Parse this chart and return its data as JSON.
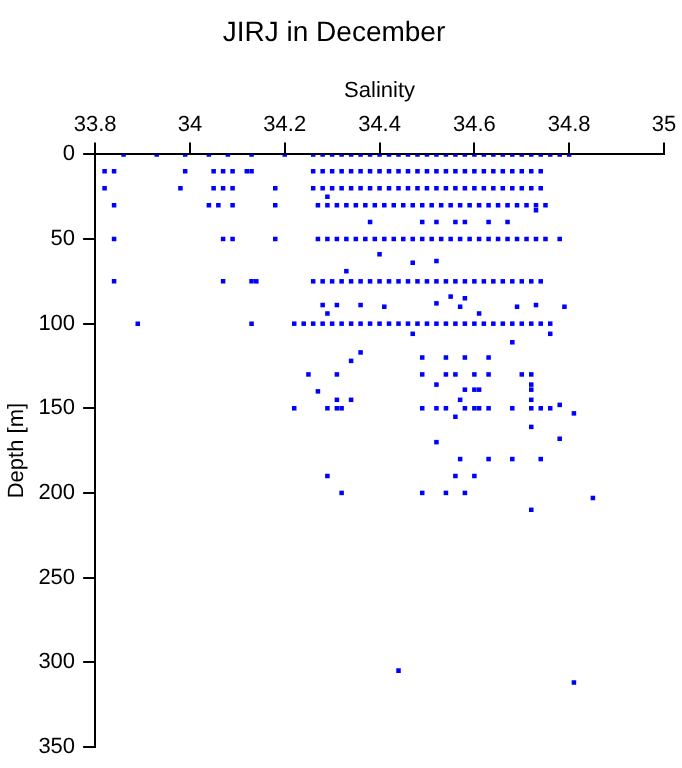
{
  "chart_data": {
    "type": "scatter",
    "title": "JIRJ in December",
    "xlabel": "Salinity",
    "ylabel": "Depth [m]",
    "xlim": [
      33.8,
      35
    ],
    "xticks": [
      33.8,
      34,
      34.2,
      34.4,
      34.6,
      34.8,
      35
    ],
    "ylim": [
      350,
      0
    ],
    "yticks": [
      0,
      50,
      100,
      150,
      200,
      250,
      300,
      350
    ],
    "grid": false,
    "marker": "square",
    "color": "#0000ff",
    "x": [
      33.86,
      33.93,
      33.99,
      34.04,
      34.08,
      34.13,
      34.2,
      34.26,
      34.28,
      34.3,
      34.32,
      34.34,
      34.36,
      34.38,
      34.4,
      34.42,
      34.44,
      34.46,
      34.48,
      34.5,
      34.52,
      34.54,
      34.56,
      34.58,
      34.6,
      34.62,
      34.64,
      34.66,
      34.68,
      34.7,
      34.72,
      34.74,
      34.76,
      34.78,
      34.8,
      33.82,
      33.84,
      33.99,
      34.05,
      34.07,
      34.09,
      34.12,
      34.13,
      34.26,
      34.28,
      34.3,
      34.32,
      34.34,
      34.36,
      34.38,
      34.4,
      34.42,
      34.44,
      34.46,
      34.48,
      34.5,
      34.52,
      34.54,
      34.56,
      34.58,
      34.6,
      34.62,
      34.64,
      34.66,
      34.68,
      34.7,
      34.72,
      34.74,
      33.82,
      33.98,
      34.05,
      34.07,
      34.09,
      34.18,
      34.26,
      34.28,
      34.3,
      34.32,
      34.34,
      34.36,
      34.38,
      34.4,
      34.42,
      34.44,
      34.46,
      34.48,
      34.5,
      34.52,
      34.54,
      34.56,
      34.58,
      34.6,
      34.62,
      34.64,
      34.66,
      34.68,
      34.7,
      34.72,
      34.74,
      33.84,
      34.04,
      34.06,
      34.09,
      34.18,
      34.27,
      34.29,
      34.31,
      34.33,
      34.35,
      34.37,
      34.39,
      34.41,
      34.43,
      34.45,
      34.47,
      34.49,
      34.51,
      34.53,
      34.55,
      34.57,
      34.59,
      34.61,
      34.63,
      34.65,
      34.67,
      34.69,
      34.71,
      34.73,
      34.75,
      33.84,
      34.07,
      34.09,
      34.18,
      34.27,
      34.29,
      34.31,
      34.33,
      34.35,
      34.37,
      34.39,
      34.41,
      34.43,
      34.45,
      34.47,
      34.49,
      34.51,
      34.53,
      34.55,
      34.57,
      34.59,
      34.61,
      34.63,
      34.65,
      34.67,
      34.69,
      34.71,
      34.73,
      34.75,
      34.78,
      33.84,
      34.07,
      34.13,
      34.14,
      34.26,
      34.28,
      34.3,
      34.32,
      34.34,
      34.36,
      34.38,
      34.4,
      34.42,
      34.44,
      34.46,
      34.48,
      34.5,
      34.52,
      34.54,
      34.56,
      34.58,
      34.6,
      34.62,
      34.64,
      34.66,
      34.68,
      34.7,
      34.72,
      34.74,
      33.89,
      34.13,
      34.22,
      34.24,
      34.26,
      34.28,
      34.3,
      34.32,
      34.34,
      34.36,
      34.38,
      34.4,
      34.42,
      34.44,
      34.46,
      34.48,
      34.5,
      34.52,
      34.54,
      34.56,
      34.58,
      34.6,
      34.62,
      34.64,
      34.66,
      34.68,
      34.7,
      34.72,
      34.74,
      34.76,
      34.29,
      34.38,
      34.49,
      34.52,
      34.56,
      34.58,
      34.63,
      34.67,
      34.73,
      34.4,
      34.47,
      34.52,
      34.33,
      34.28,
      34.31,
      34.29,
      34.36,
      34.41,
      34.52,
      34.55,
      34.58,
      34.57,
      34.61,
      34.69,
      34.73,
      34.79,
      34.47,
      34.76,
      34.68,
      34.36,
      34.34,
      34.49,
      34.54,
      34.58,
      34.63,
      34.25,
      34.31,
      34.49,
      34.54,
      34.56,
      34.6,
      34.63,
      34.7,
      34.72,
      34.52,
      34.72,
      34.58,
      34.6,
      34.61,
      34.72,
      34.27,
      34.31,
      34.34,
      34.57,
      34.72,
      34.22,
      34.29,
      34.31,
      34.32,
      34.49,
      34.52,
      34.54,
      34.58,
      34.6,
      34.61,
      34.63,
      34.68,
      34.72,
      34.74,
      34.76,
      34.78,
      34.81,
      34.56,
      34.72,
      34.52,
      34.78,
      34.57,
      34.63,
      34.68,
      34.74,
      34.29,
      34.56,
      34.6,
      34.32,
      34.49,
      34.54,
      34.58,
      34.85,
      34.72,
      34.44,
      34.81
    ],
    "values": [
      0,
      0,
      0,
      0,
      0,
      0,
      0,
      0,
      0,
      0,
      0,
      0,
      0,
      0,
      0,
      0,
      0,
      0,
      0,
      0,
      0,
      0,
      0,
      0,
      0,
      0,
      0,
      0,
      0,
      0,
      0,
      0,
      0,
      0,
      0,
      10,
      10,
      10,
      10,
      10,
      10,
      10,
      10,
      10,
      10,
      10,
      10,
      10,
      10,
      10,
      10,
      10,
      10,
      10,
      10,
      10,
      10,
      10,
      10,
      10,
      10,
      10,
      10,
      10,
      10,
      10,
      10,
      10,
      20,
      20,
      20,
      20,
      20,
      20,
      20,
      20,
      20,
      20,
      20,
      20,
      20,
      20,
      20,
      20,
      20,
      20,
      20,
      20,
      20,
      20,
      20,
      20,
      20,
      20,
      20,
      20,
      20,
      20,
      20,
      30,
      30,
      30,
      30,
      30,
      30,
      30,
      30,
      30,
      30,
      30,
      30,
      30,
      30,
      30,
      30,
      30,
      30,
      30,
      30,
      30,
      30,
      30,
      30,
      30,
      30,
      30,
      30,
      30,
      30,
      50,
      50,
      50,
      50,
      50,
      50,
      50,
      50,
      50,
      50,
      50,
      50,
      50,
      50,
      50,
      50,
      50,
      50,
      50,
      50,
      50,
      50,
      50,
      50,
      50,
      50,
      50,
      50,
      50,
      50,
      75,
      75,
      75,
      75,
      75,
      75,
      75,
      75,
      75,
      75,
      75,
      75,
      75,
      75,
      75,
      75,
      75,
      75,
      75,
      75,
      75,
      75,
      75,
      75,
      75,
      75,
      75,
      75,
      75,
      100,
      100,
      100,
      100,
      100,
      100,
      100,
      100,
      100,
      100,
      100,
      100,
      100,
      100,
      100,
      100,
      100,
      100,
      100,
      100,
      100,
      100,
      100,
      100,
      100,
      100,
      100,
      100,
      100,
      100,
      25,
      40,
      40,
      40,
      40,
      40,
      40,
      40,
      33,
      59,
      64,
      63,
      69,
      89,
      89,
      94,
      89,
      90,
      88,
      84,
      85,
      90,
      94,
      90,
      89,
      90,
      106,
      106,
      111,
      117,
      122,
      120,
      120,
      120,
      120,
      130,
      130,
      130,
      130,
      130,
      130,
      130,
      130,
      130,
      136,
      136,
      139,
      139,
      139,
      139,
      140,
      145,
      145,
      145,
      145,
      150,
      150,
      150,
      150,
      150,
      150,
      150,
      150,
      150,
      150,
      150,
      150,
      150,
      150,
      150,
      148,
      153,
      155,
      161,
      170,
      168,
      180,
      180,
      180,
      180,
      190,
      190,
      190,
      200,
      200,
      200,
      200,
      203,
      210,
      305,
      312
    ]
  }
}
